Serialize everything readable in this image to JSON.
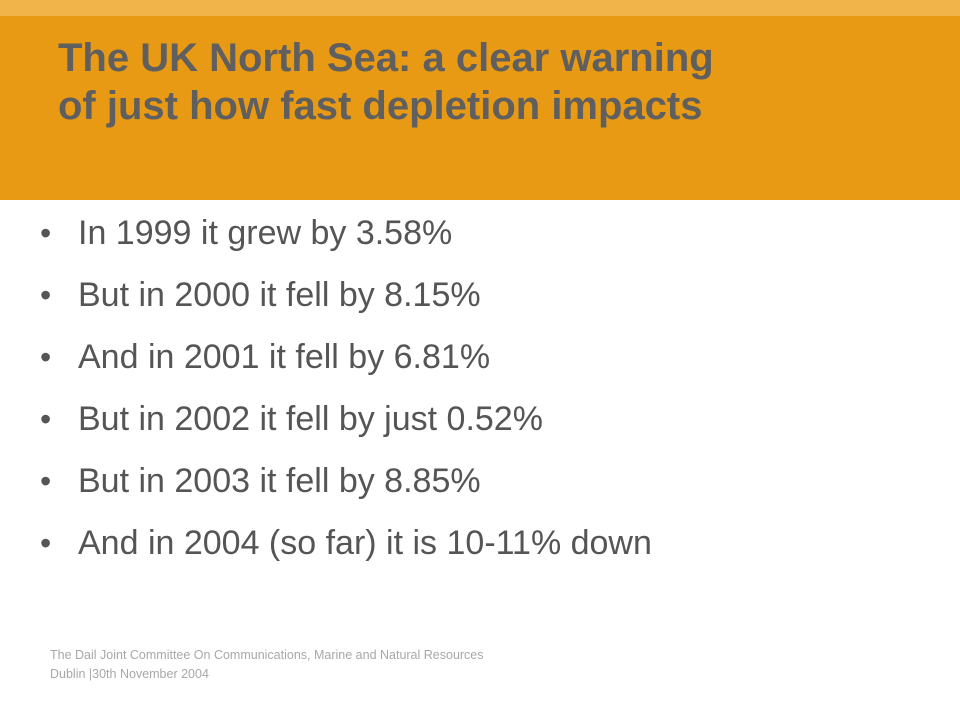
{
  "colors": {
    "header_background": "#e89a14",
    "header_top_strip": "#f0b44a",
    "title_text": "#5f5f5f",
    "body_text": "#555555",
    "footer_text": "#a8a8a8"
  },
  "header": {
    "title_line1": "The UK North Sea: a clear warning",
    "title_line2": "of just how fast depletion impacts"
  },
  "bullets": [
    {
      "marker": "•",
      "text": "In 1999 it grew by 3.58%"
    },
    {
      "marker": "•",
      "text": "But in 2000 it fell by 8.15%"
    },
    {
      "marker": "•",
      "text": "And in 2001 it fell by 6.81%"
    },
    {
      "marker": "•",
      "text": "But in 2002 it fell by just 0.52%"
    },
    {
      "marker": "•",
      "text": "But in 2003 it fell by 8.85%"
    },
    {
      "marker": "•",
      "text": "And in 2004 (so far) it is 10-11% down"
    }
  ],
  "footer": {
    "line1": "The Dail Joint Committee On Communications, Marine and Natural Resources",
    "line2": "Dublin |30th November 2004"
  }
}
